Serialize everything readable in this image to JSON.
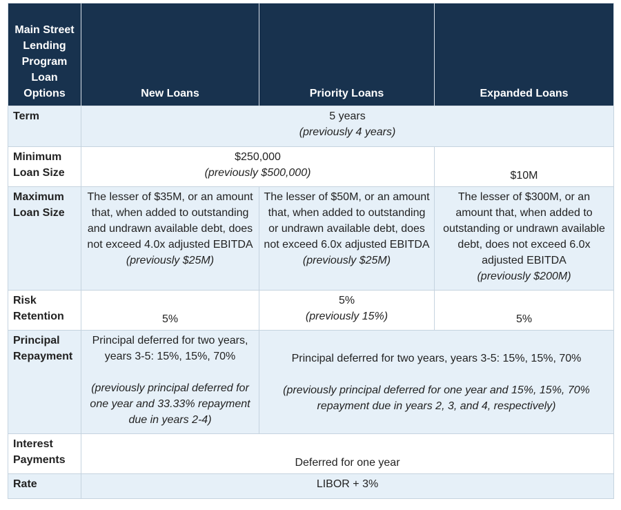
{
  "header": {
    "corner": "Main Street Lending Program Loan Options",
    "columns": [
      "New Loans",
      "Priority Loans",
      "Expanded Loans"
    ]
  },
  "rows": {
    "term": {
      "label": "Term",
      "value": "5 years",
      "note": "(previously 4 years)"
    },
    "min_loan": {
      "label": "Minimum Loan Size",
      "value": "$250,000",
      "note": "(previously $500,000)",
      "expanded": "$10M"
    },
    "max_loan": {
      "label": "Maximum Loan Size",
      "new": "The lesser of $35M, or an amount that, when added to outstanding and undrawn available debt, does not exceed 4.0x adjusted EBITDA",
      "new_note": "(previously $25M)",
      "priority": "The lesser of $50M, or an amount that, when added to outstanding or undrawn available debt, does not exceed 6.0x adjusted EBITDA",
      "priority_note": "(previously $25M)",
      "expanded": "The lesser of $300M, or an amount that, when added to outstanding or undrawn available debt, does not exceed 6.0x adjusted EBITDA",
      "expanded_note": "(previously $200M)"
    },
    "risk": {
      "label": "Risk Retention",
      "new": "5%",
      "priority": "5%",
      "priority_note": "(previously 15%)",
      "expanded": "5%"
    },
    "principal": {
      "label": "Principal Repayment",
      "new": "Principal deferred for two years, years 3-5: 15%, 15%, 70%",
      "new_note": "(previously principal deferred for one year and 33.33% repayment due in years 2-4)",
      "other": "Principal deferred for two years, years 3-5: 15%, 15%, 70%",
      "other_note": "(previously principal deferred for one year and 15%, 15%, 70% repayment due in years 2, 3, and 4, respectively)"
    },
    "interest": {
      "label": "Interest Payments",
      "value": "Deferred for one year"
    },
    "rate": {
      "label": "Rate",
      "value": "LIBOR + 3%"
    }
  }
}
